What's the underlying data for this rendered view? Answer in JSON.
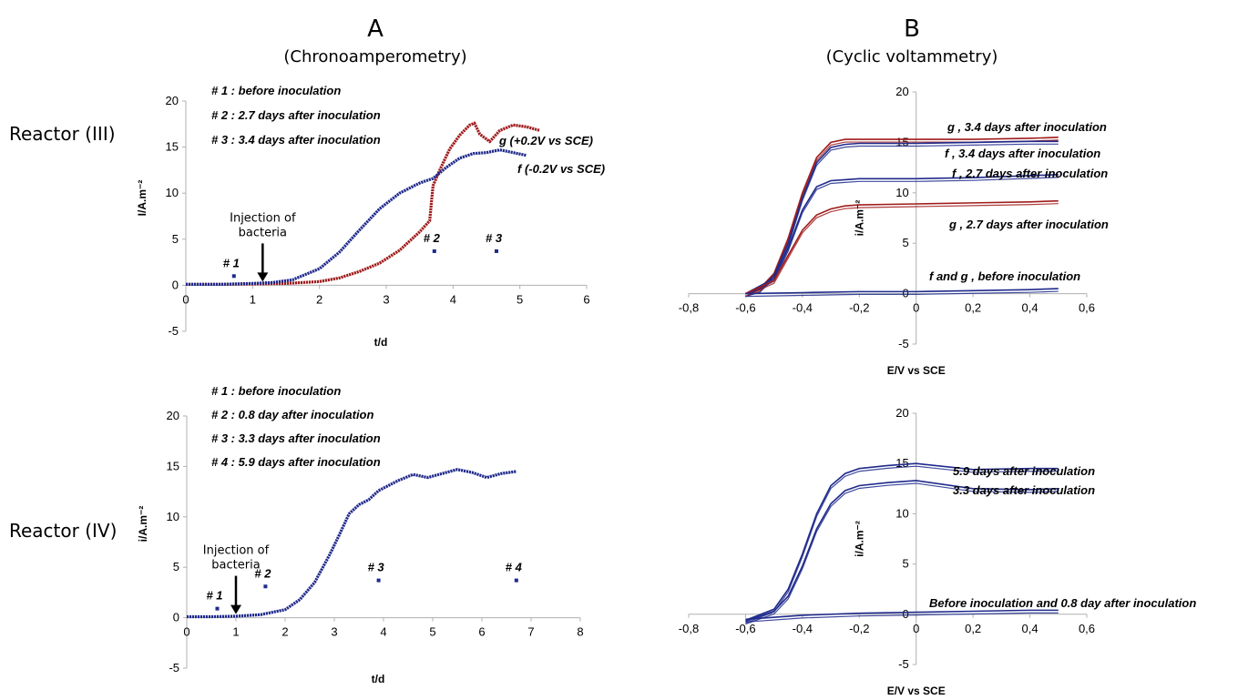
{
  "header": {
    "col_a_letter": "A",
    "col_a_sub": "(Chronoamperometry)",
    "col_b_letter": "B",
    "col_b_sub": "(Cyclic voltammetry)"
  },
  "rows": {
    "r3": "Reactor (III)",
    "r4": "Reactor (IV)"
  },
  "colors": {
    "red": "#a01c1c",
    "blue": "#1f2a8c",
    "axis": "#b0b0b0"
  },
  "chart_data": [
    {
      "id": "panel_a3",
      "type": "scatter",
      "xlabel": "t/d",
      "ylabel": "I/A.m⁻²",
      "xlim": [
        0,
        6
      ],
      "ylim": [
        -5,
        20
      ],
      "xticks": [
        "0",
        "1",
        "2",
        "3",
        "4",
        "5",
        "6"
      ],
      "yticks": [
        "-5",
        "0",
        "5",
        "10",
        "15",
        "20"
      ],
      "legend_lines": [
        "# 1 : before inoculation",
        "# 2 : 2.7 days after inoculation",
        "# 3 : 3.4 days after inoculation"
      ],
      "annotation": {
        "label_1": "Injection of",
        "label_2": "bacteria",
        "x": 1.15
      },
      "series": [
        {
          "name": "g (+0.2V vs SCE)",
          "color": "red",
          "x": [
            0,
            0.5,
            1,
            1.5,
            2,
            2.3,
            2.6,
            2.9,
            3.2,
            3.5,
            3.65,
            3.7,
            3.8,
            3.95,
            4.1,
            4.25,
            4.32,
            4.4,
            4.55,
            4.7,
            4.9,
            5.1,
            5.3
          ],
          "y": [
            0.1,
            0.1,
            0.15,
            0.2,
            0.4,
            0.8,
            1.5,
            2.4,
            3.8,
            5.8,
            7.0,
            10.8,
            12.5,
            14.8,
            16.3,
            17.4,
            17.6,
            16.4,
            15.6,
            16.8,
            17.4,
            17.2,
            16.8
          ]
        },
        {
          "name": "f (-0.2V vs SCE)",
          "color": "blue",
          "x": [
            0,
            0.5,
            1,
            1.3,
            1.6,
            2,
            2.3,
            2.6,
            2.9,
            3.2,
            3.5,
            3.7,
            3.9,
            4.1,
            4.3,
            4.5,
            4.7,
            4.9,
            5.1
          ],
          "y": [
            0.1,
            0.1,
            0.2,
            0.3,
            0.6,
            1.8,
            3.6,
            6.0,
            8.3,
            10.0,
            11.1,
            11.6,
            12.8,
            13.8,
            14.3,
            14.4,
            14.7,
            14.4,
            14.1
          ]
        }
      ],
      "markers": [
        {
          "label": "# 1",
          "x": 0.72,
          "y": 1.0
        },
        {
          "label": "# 2",
          "x": 3.72,
          "y": 3.7
        },
        {
          "label": "# 3",
          "x": 4.65,
          "y": 3.7
        }
      ]
    },
    {
      "id": "panel_a4",
      "type": "scatter",
      "xlabel": "t/d",
      "ylabel": "i/A.m⁻²",
      "xlim": [
        0,
        8
      ],
      "ylim": [
        -5,
        20
      ],
      "xticks": [
        "0",
        "1",
        "2",
        "3",
        "4",
        "5",
        "6",
        "7",
        "8"
      ],
      "yticks": [
        "-5",
        "0",
        "5",
        "10",
        "15",
        "20"
      ],
      "legend_lines": [
        "# 1 : before inoculation",
        "# 2 : 0.8 day after inoculation",
        "# 3 : 3.3 days after inoculation",
        "# 4 : 5.9 days after inoculation"
      ],
      "annotation": {
        "label_1": "Injection of",
        "label_2": "bacteria",
        "x": 1.0
      },
      "series": [
        {
          "name": "",
          "color": "blue",
          "x": [
            0,
            0.5,
            1,
            1.5,
            2,
            2.3,
            2.6,
            2.9,
            3.1,
            3.3,
            3.5,
            3.7,
            3.9,
            4.1,
            4.3,
            4.6,
            4.9,
            5.2,
            5.5,
            5.8,
            6.1,
            6.4,
            6.7
          ],
          "y": [
            0.1,
            0.1,
            0.15,
            0.3,
            0.8,
            1.8,
            3.5,
            6.2,
            8.2,
            10.3,
            11.2,
            11.7,
            12.6,
            13.1,
            13.6,
            14.2,
            13.9,
            14.3,
            14.7,
            14.4,
            13.9,
            14.3,
            14.5
          ]
        }
      ],
      "markers": [
        {
          "label": "# 1",
          "x": 0.62,
          "y": 0.9
        },
        {
          "label": "# 2",
          "x": 1.6,
          "y": 3.1
        },
        {
          "label": "# 3",
          "x": 3.9,
          "y": 3.7
        },
        {
          "label": "# 4",
          "x": 6.7,
          "y": 3.7
        }
      ]
    },
    {
      "id": "panel_b3",
      "type": "line",
      "xlabel": "E/V vs SCE",
      "ylabel": "i/A.m⁻²",
      "xlim": [
        -0.8,
        0.6
      ],
      "ylim": [
        -5,
        20
      ],
      "xticks": [
        "-0,8",
        "-0,6",
        "-0,4",
        "-0,2",
        "0",
        "0,2",
        "0,4",
        "0,6"
      ],
      "yticks": [
        "-5",
        "0",
        "5",
        "10",
        "15",
        "20"
      ],
      "series": [
        {
          "name": "g , 3.4 days after inoculation",
          "color": "red",
          "x": [
            -0.6,
            -0.55,
            -0.5,
            -0.45,
            -0.4,
            -0.35,
            -0.3,
            -0.25,
            -0.2,
            0,
            0.2,
            0.4,
            0.5
          ],
          "y": [
            0,
            0.5,
            2,
            5.5,
            10,
            13.5,
            15,
            15.3,
            15.3,
            15.3,
            15.3,
            15.4,
            15.5
          ]
        },
        {
          "name": "f , 3.4 days after inoculation",
          "color": "blue",
          "x": [
            -0.6,
            -0.55,
            -0.5,
            -0.45,
            -0.4,
            -0.35,
            -0.3,
            -0.25,
            -0.2,
            0,
            0.2,
            0.4,
            0.5
          ],
          "y": [
            0,
            0.4,
            1.8,
            5,
            9.5,
            13,
            14.5,
            14.8,
            14.9,
            14.9,
            15,
            15.1,
            15.1
          ]
        },
        {
          "name": "f , 2.7 days after inoculation",
          "color": "blue",
          "x": [
            -0.6,
            -0.5,
            -0.45,
            -0.4,
            -0.35,
            -0.3,
            -0.25,
            -0.2,
            0,
            0.2,
            0.4,
            0.5
          ],
          "y": [
            0,
            1.5,
            4.5,
            8.3,
            10.6,
            11.2,
            11.3,
            11.4,
            11.4,
            11.5,
            11.7,
            11.8
          ]
        },
        {
          "name": "g , 2.7 days after inoculation",
          "color": "red",
          "x": [
            -0.6,
            -0.5,
            -0.45,
            -0.4,
            -0.35,
            -0.3,
            -0.25,
            -0.2,
            0,
            0.2,
            0.4,
            0.5
          ],
          "y": [
            0,
            1.3,
            3.8,
            6.3,
            7.8,
            8.4,
            8.7,
            8.8,
            8.9,
            9.0,
            9.1,
            9.2
          ]
        },
        {
          "name": "f and g , before inoculation",
          "color": "blue",
          "x": [
            -0.6,
            -0.4,
            -0.2,
            0,
            0.2,
            0.4,
            0.5
          ],
          "y": [
            0,
            0.1,
            0.2,
            0.2,
            0.3,
            0.4,
            0.5
          ]
        }
      ]
    },
    {
      "id": "panel_b4",
      "type": "line",
      "xlabel": "E/V vs SCE",
      "ylabel": "i/A.m⁻²",
      "xlim": [
        -0.8,
        0.6
      ],
      "ylim": [
        -5,
        20
      ],
      "xticks": [
        "-0,8",
        "-0,6",
        "-0,4",
        "-0,2",
        "0",
        "0,2",
        "0,4",
        "0,6"
      ],
      "yticks": [
        "-5",
        "0",
        "5",
        "10",
        "15",
        "20"
      ],
      "series": [
        {
          "name": "5.9 days after inoculation",
          "color": "blue",
          "x": [
            -0.6,
            -0.5,
            -0.45,
            -0.4,
            -0.35,
            -0.3,
            -0.25,
            -0.2,
            -0.1,
            0,
            0.2,
            0.4,
            0.5
          ],
          "y": [
            -0.6,
            0.5,
            2.5,
            6,
            10,
            12.8,
            14,
            14.5,
            14.8,
            15,
            14.4,
            14.5,
            14.5
          ]
        },
        {
          "name": "3.3 days after inoculation",
          "color": "blue",
          "x": [
            -0.6,
            -0.5,
            -0.45,
            -0.4,
            -0.35,
            -0.3,
            -0.25,
            -0.2,
            -0.1,
            0,
            0.2,
            0.4,
            0.5
          ],
          "y": [
            -0.7,
            0.3,
            1.8,
            4.8,
            8.5,
            11,
            12.3,
            12.8,
            13.1,
            13.3,
            12.5,
            12.4,
            12.5
          ]
        },
        {
          "name": "Before inoculation and 0.8 day after inoculation",
          "color": "blue",
          "x": [
            -0.6,
            -0.4,
            -0.2,
            0,
            0.2,
            0.4,
            0.5
          ],
          "y": [
            -0.5,
            -0.1,
            0.1,
            0.2,
            0.3,
            0.4,
            0.4
          ]
        }
      ]
    }
  ]
}
